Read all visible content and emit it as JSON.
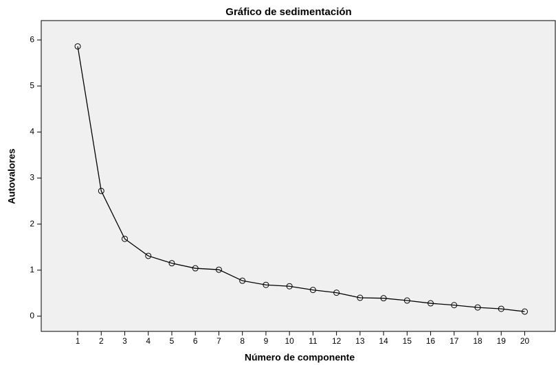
{
  "chart_data": {
    "type": "line",
    "title": "Gráfico de sedimentación",
    "x_label": "Número de componente",
    "y_label": "Autovalores",
    "x": [
      1,
      2,
      3,
      4,
      5,
      6,
      7,
      8,
      9,
      10,
      11,
      12,
      13,
      14,
      15,
      16,
      17,
      18,
      19,
      20
    ],
    "series": [
      {
        "name": "Autovalores",
        "color": "#000000",
        "values": [
          5.86,
          2.72,
          1.68,
          1.31,
          1.15,
          1.04,
          1.01,
          0.77,
          0.68,
          0.65,
          0.57,
          0.51,
          0.4,
          0.39,
          0.34,
          0.28,
          0.24,
          0.19,
          0.16,
          0.1
        ]
      }
    ],
    "xlim": [
      -0.55,
      21.3
    ],
    "xticks": [
      1,
      2,
      3,
      4,
      5,
      6,
      7,
      8,
      9,
      10,
      11,
      12,
      13,
      14,
      15,
      16,
      17,
      18,
      19,
      20
    ],
    "ylim": [
      -0.33,
      6.42
    ],
    "yticks": [
      0,
      1,
      2,
      3,
      4,
      5,
      6
    ],
    "grid": false,
    "background": "#f0f0f0"
  }
}
